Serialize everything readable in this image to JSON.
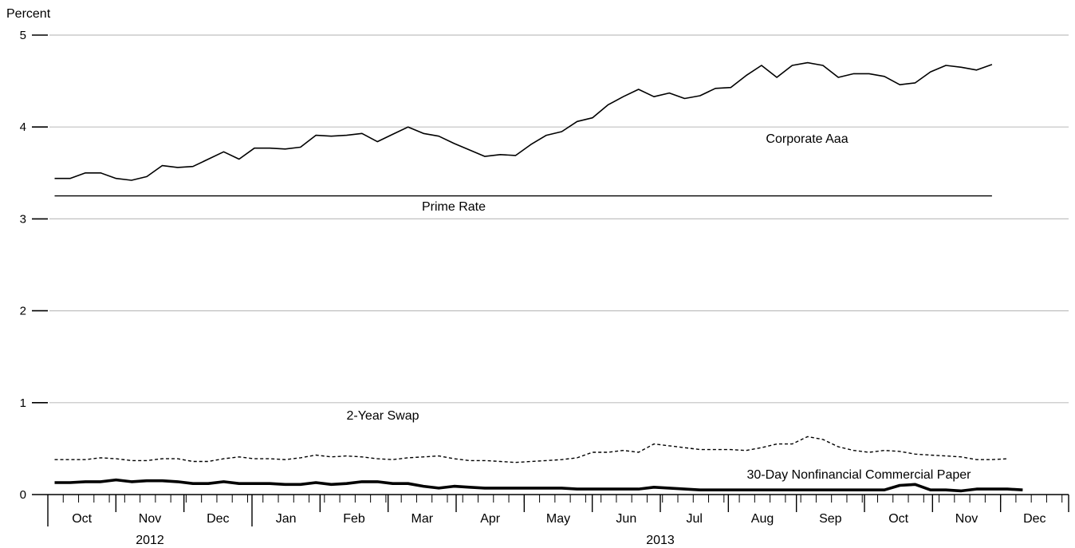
{
  "chart_data": {
    "type": "line",
    "ylabel": "Percent",
    "ylim": [
      0,
      5
    ],
    "yticks": [
      0,
      1,
      2,
      3,
      4,
      5
    ],
    "grid": true,
    "month_labels": [
      {
        "label": "Oct",
        "m": 1
      },
      {
        "label": "Nov",
        "m": 2
      },
      {
        "label": "Dec",
        "m": 3
      },
      {
        "label": "Jan",
        "m": 4
      },
      {
        "label": "Feb",
        "m": 5
      },
      {
        "label": "Mar",
        "m": 6
      },
      {
        "label": "Apr",
        "m": 7
      },
      {
        "label": "May",
        "m": 8
      },
      {
        "label": "Jun",
        "m": 9
      },
      {
        "label": "Jul",
        "m": 10
      },
      {
        "label": "Aug",
        "m": 11
      },
      {
        "label": "Sep",
        "m": 12
      },
      {
        "label": "Oct",
        "m": 13
      },
      {
        "label": "Nov",
        "m": 14
      },
      {
        "label": "Dec",
        "m": 15
      }
    ],
    "year_labels": [
      {
        "label": "2012",
        "m": 2
      },
      {
        "label": "2013",
        "m": 9.5
      }
    ],
    "year_boundary_m": 3.5,
    "x_range_months": [
      0.5,
      15.5
    ],
    "x_unit": "months since Sep 2012 (1 = Oct 2012)",
    "series": [
      {
        "name": "Corporate Aaa",
        "style": "solid",
        "color": "#000000",
        "x_start_m": 0.6,
        "step_m": 0.2258,
        "values": [
          3.44,
          3.44,
          3.5,
          3.5,
          3.44,
          3.42,
          3.46,
          3.58,
          3.56,
          3.57,
          3.65,
          3.73,
          3.65,
          3.77,
          3.77,
          3.76,
          3.78,
          3.91,
          3.9,
          3.91,
          3.93,
          3.84,
          3.92,
          4.0,
          3.93,
          3.9,
          3.82,
          3.75,
          3.68,
          3.7,
          3.69,
          3.81,
          3.91,
          3.95,
          4.06,
          4.1,
          4.24,
          4.33,
          4.41,
          4.33,
          4.37,
          4.31,
          4.34,
          4.42,
          4.43,
          4.56,
          4.67,
          4.54,
          4.67,
          4.7,
          4.67,
          4.54,
          4.58,
          4.58,
          4.55,
          4.46,
          4.48,
          4.6,
          4.67,
          4.65,
          4.62,
          4.68
        ]
      },
      {
        "name": "Prime Rate",
        "style": "solid-thin",
        "color": "#000000",
        "x_start_m": 0.6,
        "step_m": 0.2258,
        "values": [
          3.25,
          3.25,
          3.25,
          3.25,
          3.25,
          3.25,
          3.25,
          3.25,
          3.25,
          3.25,
          3.25,
          3.25,
          3.25,
          3.25,
          3.25,
          3.25,
          3.25,
          3.25,
          3.25,
          3.25,
          3.25,
          3.25,
          3.25,
          3.25,
          3.25,
          3.25,
          3.25,
          3.25,
          3.25,
          3.25,
          3.25,
          3.25,
          3.25,
          3.25,
          3.25,
          3.25,
          3.25,
          3.25,
          3.25,
          3.25,
          3.25,
          3.25,
          3.25,
          3.25,
          3.25,
          3.25,
          3.25,
          3.25,
          3.25,
          3.25,
          3.25,
          3.25,
          3.25,
          3.25,
          3.25,
          3.25,
          3.25,
          3.25,
          3.25,
          3.25,
          3.25,
          3.25
        ]
      },
      {
        "name": "2-Year Swap",
        "style": "dashed",
        "color": "#000000",
        "x_start_m": 0.6,
        "step_m": 0.2258,
        "values": [
          0.38,
          0.38,
          0.38,
          0.4,
          0.39,
          0.37,
          0.37,
          0.39,
          0.39,
          0.36,
          0.36,
          0.39,
          0.41,
          0.39,
          0.39,
          0.38,
          0.4,
          0.43,
          0.41,
          0.42,
          0.41,
          0.39,
          0.38,
          0.4,
          0.41,
          0.42,
          0.39,
          0.37,
          0.37,
          0.36,
          0.35,
          0.36,
          0.37,
          0.38,
          0.4,
          0.46,
          0.46,
          0.48,
          0.46,
          0.55,
          0.53,
          0.51,
          0.49,
          0.49,
          0.49,
          0.48,
          0.51,
          0.55,
          0.55,
          0.63,
          0.6,
          0.52,
          0.48,
          0.46,
          0.48,
          0.47,
          0.44,
          0.43,
          0.42,
          0.41,
          0.38,
          0.38,
          0.39
        ]
      },
      {
        "name": "30-Day Nonfinancial Commercial Paper",
        "style": "thick",
        "color": "#000000",
        "x_start_m": 0.6,
        "step_m": 0.2258,
        "values": [
          0.13,
          0.13,
          0.14,
          0.14,
          0.16,
          0.14,
          0.15,
          0.15,
          0.14,
          0.12,
          0.12,
          0.14,
          0.12,
          0.12,
          0.12,
          0.11,
          0.11,
          0.13,
          0.11,
          0.12,
          0.14,
          0.14,
          0.12,
          0.12,
          0.09,
          0.07,
          0.09,
          0.08,
          0.07,
          0.07,
          0.07,
          0.07,
          0.07,
          0.07,
          0.06,
          0.06,
          0.06,
          0.06,
          0.06,
          0.08,
          0.07,
          0.06,
          0.05,
          0.05,
          0.05,
          0.05,
          0.05,
          0.05,
          0.05,
          0.05,
          0.05,
          0.05,
          0.05,
          0.05,
          0.05,
          0.1,
          0.11,
          0.05,
          0.05,
          0.04,
          0.06,
          0.06,
          0.06,
          0.05
        ]
      }
    ],
    "annotations": [
      {
        "text": "Corporate Aaa",
        "series": 0
      },
      {
        "text": "Prime Rate",
        "series": 1
      },
      {
        "text": "2-Year Swap",
        "series": 2
      },
      {
        "text": "30-Day Nonfinancial Commercial Paper",
        "series": 3
      }
    ]
  }
}
